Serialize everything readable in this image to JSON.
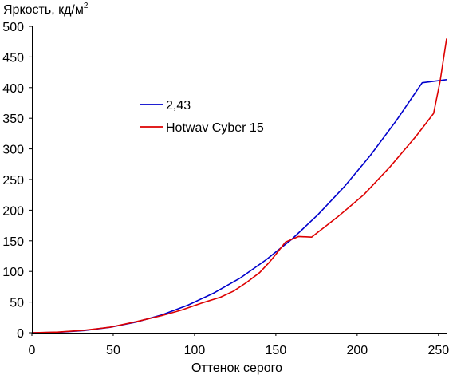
{
  "chart_data": {
    "type": "line",
    "ylabel": "Яркость, кд/м",
    "ylabel_sup": "2",
    "xlabel": "Оттенок серого",
    "xlim": [
      0,
      255
    ],
    "ylim": [
      0,
      500
    ],
    "x_ticks": [
      "0",
      "50",
      "100",
      "150",
      "200",
      "250"
    ],
    "y_ticks": [
      "0",
      "50",
      "100",
      "150",
      "200",
      "250",
      "300",
      "350",
      "400",
      "450",
      "500"
    ],
    "grid": false,
    "legend_position": "upper-left-inside",
    "series": [
      {
        "name": "2,43",
        "color": "#0000cc",
        "x": [
          0,
          16,
          32,
          48,
          64,
          80,
          96,
          112,
          128,
          144,
          160,
          176,
          192,
          208,
          224,
          240,
          255
        ],
        "y": [
          0,
          0.8,
          3.5,
          8.9,
          17.3,
          29.2,
          45,
          65,
          89,
          119,
          153,
          193,
          238,
          289,
          346,
          408,
          413
        ]
      },
      {
        "name": "Hotwav Cyber 15",
        "color": "#dd0000",
        "x": [
          0,
          16,
          32,
          48,
          64,
          80,
          92,
          104,
          116,
          124,
          132,
          140,
          146,
          150,
          156,
          164,
          172,
          188,
          204,
          220,
          236,
          247,
          251,
          255
        ],
        "y": [
          0,
          1,
          4,
          9,
          18,
          28,
          37,
          48,
          58,
          68,
          82,
          98,
          115,
          128,
          148,
          157,
          156,
          189,
          225,
          270,
          320,
          358,
          410,
          480
        ]
      }
    ]
  }
}
